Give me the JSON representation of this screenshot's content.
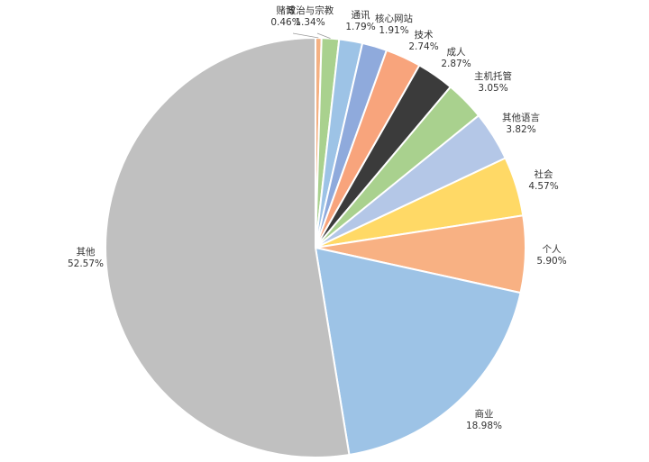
{
  "chart_data": {
    "type": "pie",
    "title": "",
    "slices": [
      {
        "label": "其他",
        "value": 52.57,
        "display": "52.57%",
        "color": "#c0c0c0"
      },
      {
        "label": "商业",
        "value": 18.98,
        "display": "18.98%",
        "color": "#9dc3e6"
      },
      {
        "label": "个人",
        "value": 5.9,
        "display": "5.90%",
        "color": "#f8b183"
      },
      {
        "label": "社会",
        "value": 4.57,
        "display": "4.57%",
        "color": "#ffd966"
      },
      {
        "label": "其他语言",
        "value": 3.82,
        "display": "3.82%",
        "color": "#b4c7e7"
      },
      {
        "label": "主机托管",
        "value": 3.05,
        "display": "3.05%",
        "color": "#a9d18e"
      },
      {
        "label": "成人",
        "value": 2.87,
        "display": "2.87%",
        "color": "#3b3b3b"
      },
      {
        "label": "技术",
        "value": 2.74,
        "display": "2.74%",
        "color": "#f8a47c"
      },
      {
        "label": "核心网站",
        "value": 1.91,
        "display": "1.91%",
        "color": "#8faadc"
      },
      {
        "label": "通讯",
        "value": 1.79,
        "display": "1.79%",
        "color": "#9dc3e6"
      },
      {
        "label": "政治与宗教",
        "value": 1.34,
        "display": "1.34%",
        "color": "#a9d18e"
      },
      {
        "label": "赌博",
        "value": 0.46,
        "display": "0.46%",
        "color": "#f4b183"
      }
    ]
  }
}
